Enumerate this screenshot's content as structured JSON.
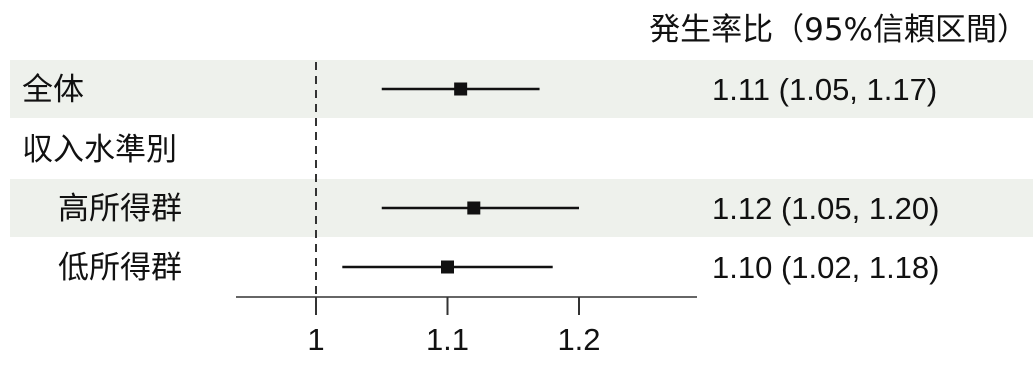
{
  "chart_data": {
    "type": "forest",
    "header": "発生率比（95%信頼区間）",
    "x_ticks": [
      1,
      1.1,
      1.2
    ],
    "x_tick_labels": [
      "1",
      "1.1",
      "1.2"
    ],
    "x_range": [
      0.95,
      1.28
    ],
    "reference_line": 1,
    "rows": [
      {
        "label": "全体",
        "indent": false,
        "shaded": true,
        "estimate": 1.11,
        "lower": 1.05,
        "upper": 1.17,
        "text": "1.11 (1.05, 1.17)"
      },
      {
        "label": "収入水準別",
        "indent": false,
        "shaded": false,
        "estimate": null,
        "lower": null,
        "upper": null,
        "text": ""
      },
      {
        "label": "高所得群",
        "indent": true,
        "shaded": true,
        "estimate": 1.12,
        "lower": 1.05,
        "upper": 1.2,
        "text": "1.12 (1.05, 1.20)"
      },
      {
        "label": "低所得群",
        "indent": true,
        "shaded": false,
        "estimate": 1.1,
        "lower": 1.02,
        "upper": 1.18,
        "text": "1.10 (1.02, 1.18)"
      }
    ],
    "colors": {
      "shade": "#eef1ec",
      "mark": "#111111",
      "reference": "#333333"
    }
  }
}
